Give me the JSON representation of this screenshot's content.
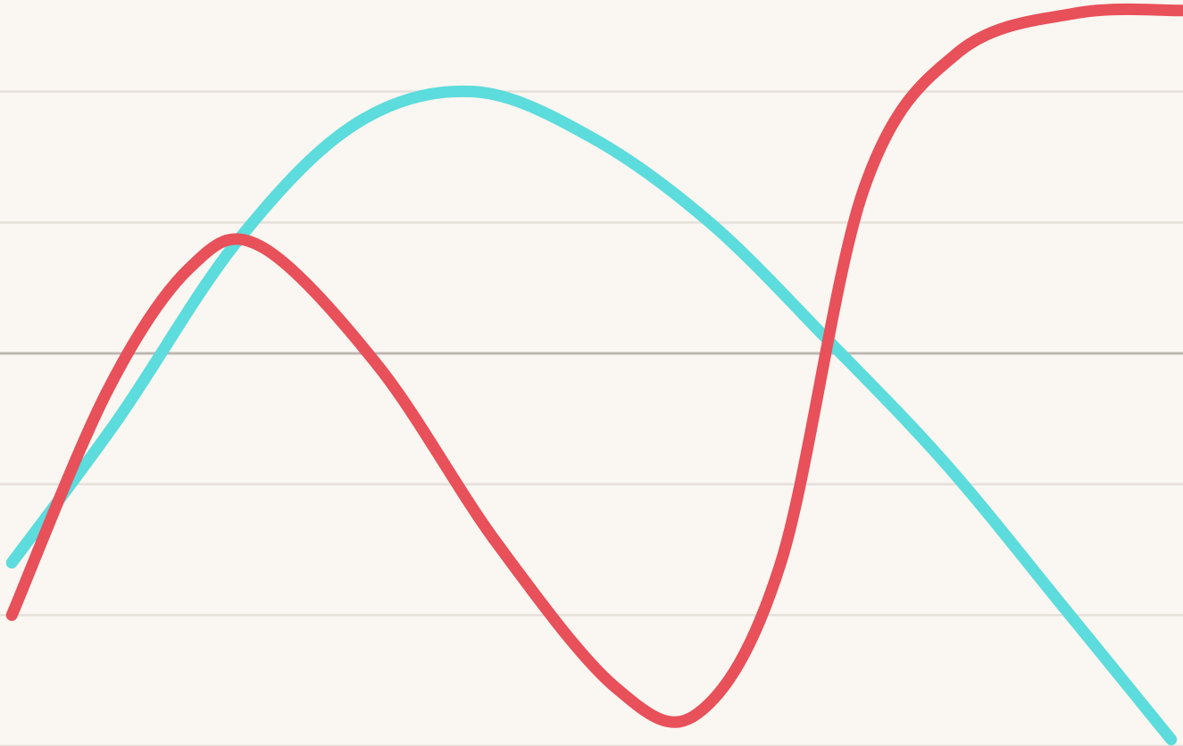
{
  "chart_data": {
    "type": "line",
    "title": "",
    "xlabel": "",
    "ylabel": "",
    "grid": true,
    "ylim": [
      -3,
      2.7
    ],
    "xlim": [
      0,
      10
    ],
    "gridlines": [
      -3,
      -2,
      -1,
      0,
      1,
      2
    ],
    "baseline": 0,
    "background": "#faf6f1",
    "grid_color": "#e5e0da",
    "baseline_color": "#bdb8b2",
    "series": [
      {
        "color": "#5cdcdc",
        "points": [
          [
            0.1,
            -1.6
          ],
          [
            1.0,
            -0.5
          ],
          [
            2.0,
            0.85
          ],
          [
            3.0,
            1.75
          ],
          [
            4.0,
            2.0
          ],
          [
            5.0,
            1.65
          ],
          [
            6.0,
            1.0
          ],
          [
            7.0,
            0.1
          ],
          [
            8.0,
            -0.85
          ],
          [
            9.0,
            -1.95
          ],
          [
            9.9,
            -2.95
          ]
        ]
      },
      {
        "color": "#e8505a",
        "points": [
          [
            0.1,
            -2.0
          ],
          [
            0.9,
            -0.3
          ],
          [
            1.6,
            0.65
          ],
          [
            2.2,
            0.82
          ],
          [
            3.2,
            -0.1
          ],
          [
            4.2,
            -1.45
          ],
          [
            5.2,
            -2.55
          ],
          [
            5.9,
            -2.75
          ],
          [
            6.6,
            -1.6
          ],
          [
            7.3,
            1.25
          ],
          [
            8.1,
            2.3
          ],
          [
            9.1,
            2.6
          ],
          [
            9.99,
            2.62
          ]
        ]
      }
    ]
  }
}
